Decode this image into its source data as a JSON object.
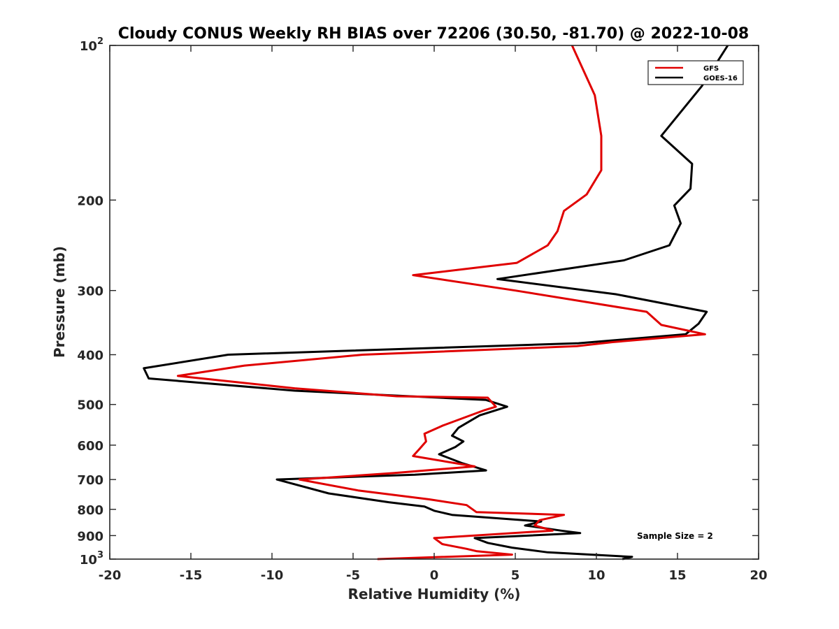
{
  "chart_data": {
    "type": "line",
    "title": "Cloudy CONUS Weekly RH BIAS over 72206 (30.50, -81.70) @ 2022-10-08",
    "xlabel": "Relative Humidity (%)",
    "ylabel": "Pressure (mb)",
    "xlim": [
      -20,
      20
    ],
    "ylim": [
      100,
      1000
    ],
    "yscale": "log",
    "y_reversed": true,
    "x_ticks": [
      -20,
      -15,
      -10,
      -5,
      0,
      5,
      10,
      15,
      20
    ],
    "x_tick_labels": [
      "-20",
      "-15",
      "-10",
      "-5",
      "0",
      "5",
      "10",
      "15",
      "20"
    ],
    "y_ticks": [
      100,
      200,
      300,
      400,
      500,
      600,
      700,
      800,
      900,
      1000
    ],
    "y_tick_labels": [
      {
        "base": "10",
        "exp": "2"
      },
      {
        "base": "200"
      },
      {
        "base": "300"
      },
      {
        "base": "400"
      },
      {
        "base": "500"
      },
      {
        "base": "600"
      },
      {
        "base": "700"
      },
      {
        "base": "800"
      },
      {
        "base": "900"
      },
      {
        "base": "10",
        "exp": "3"
      }
    ],
    "legend_position": "top-right",
    "annotation": "Sample Size = 2",
    "series": [
      {
        "name": "GFS",
        "color": "#e00000",
        "points": [
          [
            8.5,
            100
          ],
          [
            9.9,
            125
          ],
          [
            10.3,
            150
          ],
          [
            10.3,
            175
          ],
          [
            9.4,
            195
          ],
          [
            8.0,
            210
          ],
          [
            7.6,
            230
          ],
          [
            7.0,
            245
          ],
          [
            5.1,
            265
          ],
          [
            -1.3,
            280
          ],
          [
            5.0,
            300
          ],
          [
            13.1,
            330
          ],
          [
            14.0,
            350
          ],
          [
            16.7,
            365
          ],
          [
            11.0,
            378
          ],
          [
            8.8,
            385
          ],
          [
            -4.4,
            400
          ],
          [
            -11.7,
            420
          ],
          [
            -15.8,
            440
          ],
          [
            -8.6,
            465
          ],
          [
            -2.3,
            482
          ],
          [
            3.3,
            485
          ],
          [
            3.8,
            505
          ],
          [
            3.1,
            513
          ],
          [
            0.5,
            550
          ],
          [
            -0.6,
            570
          ],
          [
            -0.5,
            590
          ],
          [
            -0.9,
            610
          ],
          [
            -1.3,
            630
          ],
          [
            2.5,
            660
          ],
          [
            -2.5,
            680
          ],
          [
            -8.3,
            700
          ],
          [
            -4.7,
            735
          ],
          [
            -0.3,
            765
          ],
          [
            2.0,
            785
          ],
          [
            2.6,
            810
          ],
          [
            8.0,
            820
          ],
          [
            6.5,
            840
          ],
          [
            6.2,
            860
          ],
          [
            7.3,
            880
          ],
          [
            0.0,
            910
          ],
          [
            0.5,
            935
          ],
          [
            2.0,
            955
          ],
          [
            2.6,
            965
          ],
          [
            4.8,
            980
          ],
          [
            -3.5,
            1000
          ]
        ]
      },
      {
        "name": "GOES-16",
        "color": "#000000",
        "points": [
          [
            18.1,
            100
          ],
          [
            16.5,
            120
          ],
          [
            14.0,
            150
          ],
          [
            15.9,
            170
          ],
          [
            15.8,
            190
          ],
          [
            14.8,
            205
          ],
          [
            15.2,
            222
          ],
          [
            14.5,
            245
          ],
          [
            11.7,
            262
          ],
          [
            3.9,
            285
          ],
          [
            11.2,
            305
          ],
          [
            16.8,
            330
          ],
          [
            16.3,
            348
          ],
          [
            15.5,
            365
          ],
          [
            8.9,
            380
          ],
          [
            -12.7,
            400
          ],
          [
            -17.9,
            425
          ],
          [
            -17.6,
            445
          ],
          [
            -8.6,
            470
          ],
          [
            3.2,
            490
          ],
          [
            4.5,
            505
          ],
          [
            2.8,
            525
          ],
          [
            1.5,
            555
          ],
          [
            1.1,
            575
          ],
          [
            1.8,
            590
          ],
          [
            1.3,
            605
          ],
          [
            0.3,
            625
          ],
          [
            1.7,
            650
          ],
          [
            3.2,
            672
          ],
          [
            -1.2,
            685
          ],
          [
            -9.7,
            700
          ],
          [
            -6.5,
            745
          ],
          [
            -2.8,
            775
          ],
          [
            -0.6,
            790
          ],
          [
            0.0,
            805
          ],
          [
            1.1,
            820
          ],
          [
            6.6,
            845
          ],
          [
            5.6,
            860
          ],
          [
            6.2,
            865
          ],
          [
            7.8,
            880
          ],
          [
            9.0,
            890
          ],
          [
            2.5,
            910
          ],
          [
            3.3,
            930
          ],
          [
            4.8,
            950
          ],
          [
            7.0,
            970
          ],
          [
            12.2,
            990
          ],
          [
            11.6,
            1000
          ]
        ]
      }
    ]
  }
}
